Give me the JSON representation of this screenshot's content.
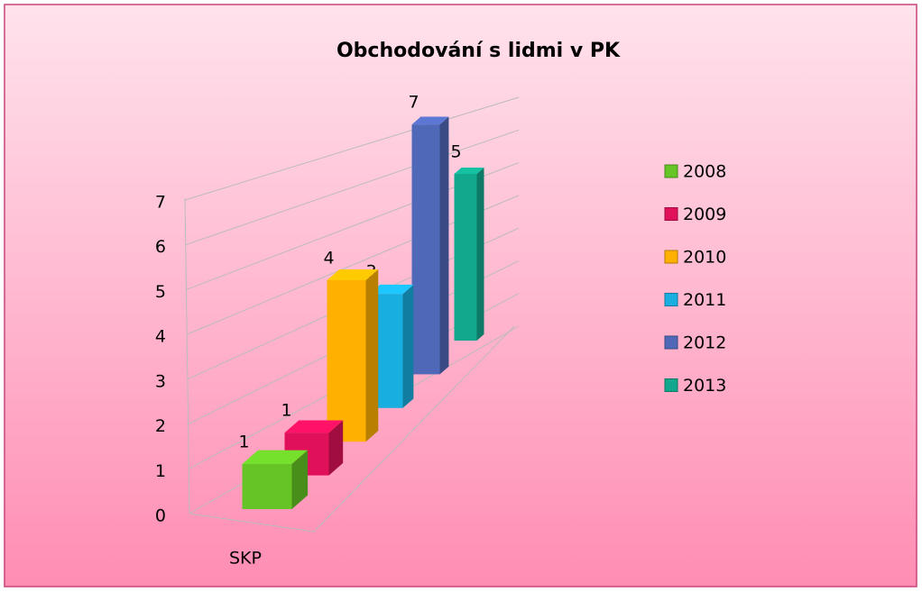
{
  "chart_data": {
    "type": "bar3d",
    "title": "Obchodování s lidmi v PK",
    "categories": [
      "SKP"
    ],
    "series": [
      {
        "name": "2008",
        "color": "#66c426",
        "values": [
          1
        ]
      },
      {
        "name": "2009",
        "color": "#e0105a",
        "values": [
          1
        ]
      },
      {
        "name": "2010",
        "color": "#ffb000",
        "values": [
          4
        ]
      },
      {
        "name": "2011",
        "color": "#18aee0",
        "values": [
          3
        ]
      },
      {
        "name": "2012",
        "color": "#5068b8",
        "values": [
          7
        ]
      },
      {
        "name": "2013",
        "color": "#12a88e",
        "values": [
          5
        ]
      }
    ],
    "ylim": [
      0,
      7
    ],
    "yticks": [
      0,
      1,
      2,
      3,
      4,
      5,
      6,
      7
    ],
    "grid": true,
    "legend": "right"
  }
}
